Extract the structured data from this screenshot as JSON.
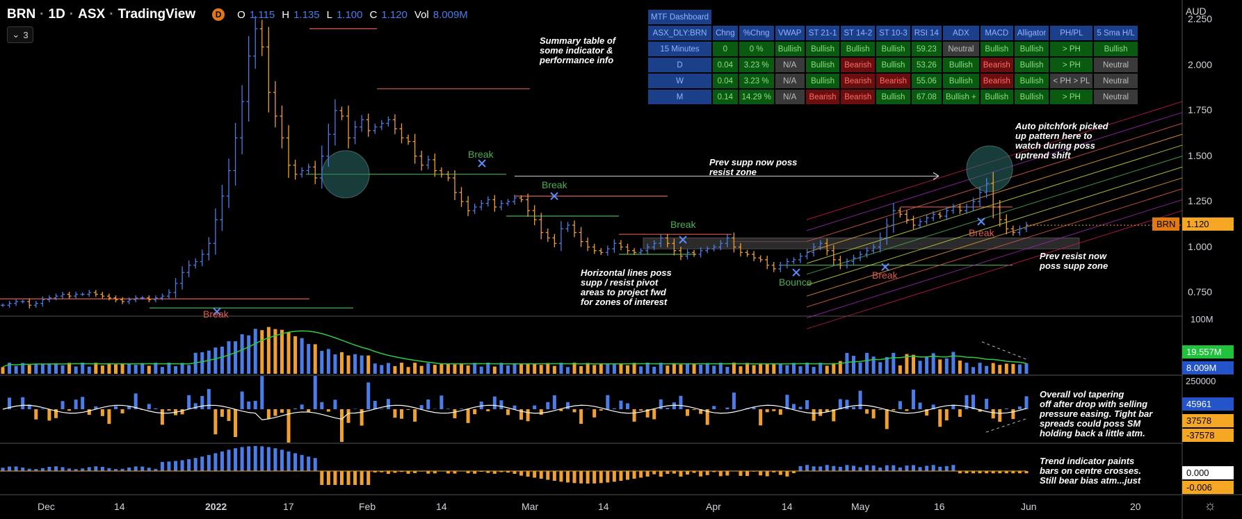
{
  "header": {
    "symbol": "BRN",
    "interval": "1D",
    "exchange": "ASX",
    "provider": "TradingView",
    "badge": "D",
    "o_label": "O",
    "o_value": "1.115",
    "h_label": "H",
    "h_value": "1.135",
    "l_label": "L",
    "l_value": "1.100",
    "c_label": "C",
    "c_value": "1.120",
    "vol_label": "Vol",
    "vol_value": "8.009M",
    "indicator_count": "3",
    "chevron_icon": "chevron-down-icon"
  },
  "colors": {
    "background": "#000000",
    "bull": "#4a7de8",
    "bear": "#f0a030",
    "resist": "#e05a4e",
    "support": "#4caf50",
    "label_red": "#e05a4e",
    "label_green": "#4caf50"
  },
  "price_axis": {
    "currency": "AUD",
    "ticks": [
      "2.250",
      "2.000",
      "1.750",
      "1.500",
      "1.250",
      "1.000",
      "0.750"
    ],
    "current_symbol": "BRN",
    "current_price": "1.120"
  },
  "volume_axis": {
    "top": "100M",
    "ma_value": "19.557M",
    "vol_value": "8.009M"
  },
  "osc_axis": {
    "top": "250000",
    "v1": "45961",
    "v2": "37578",
    "v3": "-37578"
  },
  "trend_axis": {
    "v1": "0.000",
    "v2": "-0.006"
  },
  "time_axis": [
    "Dec",
    "14",
    "2022",
    "17",
    "Feb",
    "14",
    "Mar",
    "14",
    "Apr",
    "14",
    "May",
    "16",
    "Jun",
    "20"
  ],
  "mtf_table": {
    "title": "MTF Dashboard",
    "headers": [
      "ASX_DLY:BRN",
      "Chng",
      "%Chng",
      "VWAP",
      "ST 21-1",
      "ST 14-2",
      "ST 10-3",
      "RSI 14",
      "ADX",
      "MACD",
      "Alligator",
      "PH/PL",
      "5 Sma H/L"
    ],
    "rows": [
      {
        "cells": [
          "15 Minutes",
          "0",
          "0 %",
          "Bullish",
          "Bullish",
          "Bullish",
          "Bullish",
          "59.23",
          "Neutral",
          "Bullish",
          "Bullish",
          "> PH",
          "Bullish"
        ],
        "styles": [
          "tf",
          "g",
          "g",
          "g",
          "g",
          "g",
          "g",
          "g",
          "n",
          "g",
          "g",
          "g",
          "g"
        ]
      },
      {
        "cells": [
          "D",
          "0.04",
          "3.23 %",
          "N/A",
          "Bullish",
          "Bearish",
          "Bullish",
          "53.26",
          "Bullish",
          "Bearish",
          "Bullish",
          "> PH",
          "Neutral"
        ],
        "styles": [
          "tf",
          "g",
          "g",
          "n",
          "g",
          "r",
          "g",
          "g",
          "g",
          "r",
          "g",
          "g",
          "n"
        ]
      },
      {
        "cells": [
          "W",
          "0.04",
          "3.23 %",
          "N/A",
          "Bullish",
          "Bearish",
          "Bearish",
          "55.06",
          "Bullish",
          "Bearish",
          "Bullish",
          "< PH > PL",
          "Neutral"
        ],
        "styles": [
          "tf",
          "g",
          "g",
          "n",
          "g",
          "r",
          "r",
          "g",
          "g",
          "r",
          "g",
          "n",
          "n"
        ]
      },
      {
        "cells": [
          "M",
          "0.14",
          "14.29 %",
          "N/A",
          "Bearish",
          "Bearish",
          "Bullish",
          "67.08",
          "Bullish +",
          "Bullish",
          "Bullish",
          "> PH",
          "Neutral"
        ],
        "styles": [
          "tf",
          "g",
          "g",
          "n",
          "r",
          "r",
          "g",
          "g",
          "g",
          "g",
          "g",
          "g",
          "n"
        ]
      }
    ]
  },
  "annotations": {
    "summary": "Summary table of\nsome indicator &\nperformance info",
    "prev_supp": "Prev supp now poss\nresist zone",
    "pitchfork": "Auto pitchfork picked\nup pattern here to\nwatch during poss\nuptrend shift",
    "horizontal": "Horizontal lines poss\nsupp / resist pivot\nareas to project fwd\nfor zones of interest",
    "prev_resist": "Prev resist now\nposs supp zone",
    "vol_note": "Overall vol tapering\noff after drop with selling\npressure easing. Tight bar\nspreads could poss SM\nholding back a little atm.",
    "trend_note": "Trend indicator paints\nbars on centre crosses.\nStill bear bias atm...just"
  },
  "chart_labels": {
    "break": "Break",
    "bounce": "Bounce"
  },
  "chart_data": {
    "type": "ohlc",
    "ylim": [
      0.62,
      2.32
    ],
    "price_ticks": [
      2.25,
      2.0,
      1.75,
      1.5,
      1.25,
      1.0,
      0.75
    ],
    "x_labels": [
      "Dec",
      "14",
      "2022",
      "17",
      "Feb",
      "14",
      "Mar",
      "14",
      "Apr",
      "14",
      "May",
      "16",
      "Jun",
      "20"
    ],
    "close_path": [
      0.68,
      0.69,
      0.7,
      0.7,
      0.68,
      0.69,
      0.71,
      0.72,
      0.73,
      0.74,
      0.73,
      0.74,
      0.74,
      0.75,
      0.74,
      0.73,
      0.72,
      0.71,
      0.7,
      0.71,
      0.72,
      0.72,
      0.71,
      0.72,
      0.73,
      0.75,
      0.8,
      0.86,
      0.9,
      0.92,
      0.96,
      1.02,
      1.15,
      1.28,
      1.42,
      1.6,
      1.8,
      2.05,
      2.2,
      2.1,
      1.85,
      1.72,
      1.6,
      1.45,
      1.4,
      1.42,
      1.44,
      1.38,
      1.5,
      1.62,
      1.75,
      1.72,
      1.6,
      1.66,
      1.7,
      1.64,
      1.66,
      1.68,
      1.7,
      1.65,
      1.6,
      1.58,
      1.5,
      1.45,
      1.48,
      1.42,
      1.4,
      1.38,
      1.3,
      1.25,
      1.2,
      1.22,
      1.24,
      1.26,
      1.22,
      1.24,
      1.25,
      1.27,
      1.26,
      1.2,
      1.15,
      1.08,
      1.05,
      1.02,
      1.1,
      1.12,
      1.08,
      1.03,
      1.0,
      0.98,
      0.97,
      0.99,
      1.02,
      1.0,
      0.98,
      0.97,
      0.98,
      1.0,
      1.02,
      1.05,
      1.02,
      0.98,
      0.95,
      0.97,
      0.96,
      0.98,
      0.99,
      1.0,
      1.02,
      1.05,
      1.0,
      0.97,
      0.96,
      0.94,
      0.93,
      0.9,
      0.88,
      0.9,
      0.92,
      0.93,
      0.95,
      0.97,
      1.0,
      1.02,
      0.98,
      0.93,
      0.9,
      0.92,
      0.94,
      0.96,
      0.98,
      1.0,
      1.05,
      1.12,
      1.2,
      1.18,
      1.15,
      1.12,
      1.14,
      1.16,
      1.18,
      1.17,
      1.2,
      1.22,
      1.2,
      1.22,
      1.25,
      1.3,
      1.35,
      1.22,
      1.15,
      1.1,
      1.08,
      1.1,
      1.12
    ],
    "breaks": [
      {
        "price": 0.645,
        "label": "Break",
        "color": "red"
      },
      {
        "price": 1.46,
        "label": "Break",
        "color": "green"
      },
      {
        "price": 1.28,
        "label": "Break",
        "color": "green"
      },
      {
        "price": 1.04,
        "label": "Break",
        "color": "green"
      },
      {
        "price": 0.86,
        "label": "Bounce",
        "color": "green"
      },
      {
        "price": 0.89,
        "label": "Break",
        "color": "red"
      },
      {
        "price": 1.14,
        "label": "Break",
        "color": "red"
      }
    ]
  }
}
